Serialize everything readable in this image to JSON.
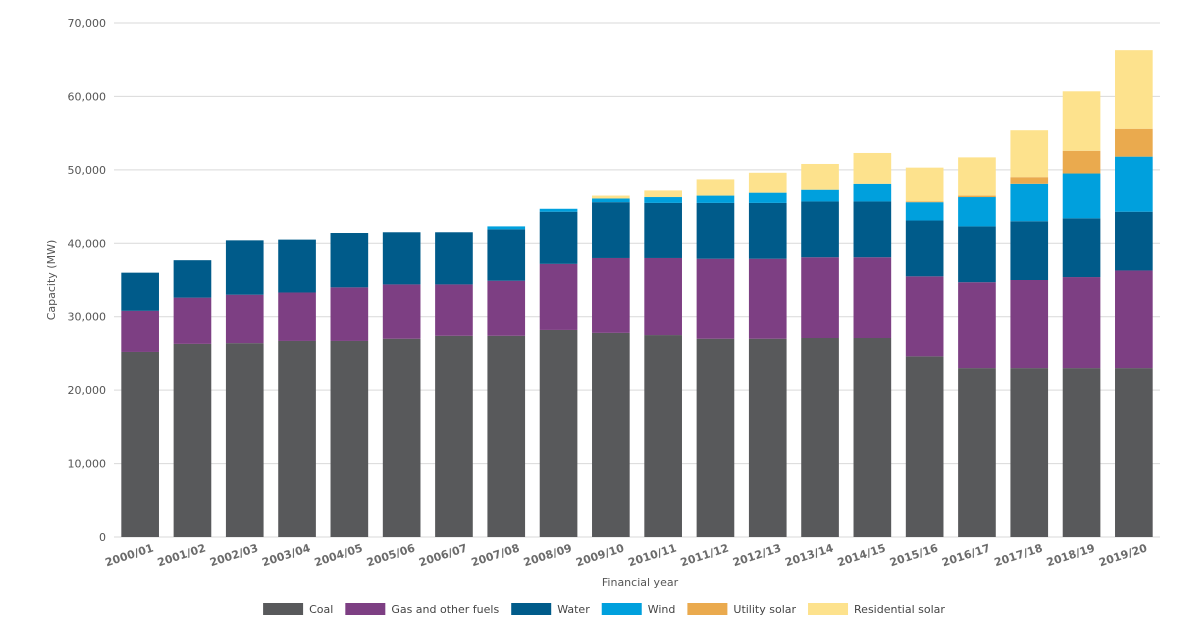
{
  "chart_data": {
    "type": "bar",
    "stacked": true,
    "xlabel": "Financial year",
    "ylabel": "Capacity (MW)",
    "ylim": [
      0,
      70000
    ],
    "yticks": [
      0,
      10000,
      20000,
      30000,
      40000,
      50000,
      60000,
      70000
    ],
    "ytick_labels": [
      "0",
      "10,000",
      "20,000",
      "30,000",
      "40,000",
      "50,000",
      "60,000",
      "70,000"
    ],
    "grid": true,
    "legend_position": "bottom",
    "categories": [
      "2000/01",
      "2001/02",
      "2002/03",
      "2003/04",
      "2004/05",
      "2005/06",
      "2006/07",
      "2007/08",
      "2008/09",
      "2009/10",
      "2010/11",
      "2011/12",
      "2012/13",
      "2013/14",
      "2014/15",
      "2015/16",
      "2016/17",
      "2017/18",
      "2018/19",
      "2019/20"
    ],
    "series": [
      {
        "name": "Coal",
        "color": "#58595b",
        "values": [
          25200,
          26300,
          26400,
          26700,
          26700,
          27000,
          27400,
          27400,
          28200,
          27800,
          27500,
          27000,
          27000,
          27100,
          27100,
          24600,
          23000,
          23000,
          23000,
          23000
        ]
      },
      {
        "name": "Gas and other fuels",
        "color": "#7d3f83",
        "values": [
          5600,
          6300,
          6600,
          6600,
          7300,
          7400,
          7000,
          7500,
          9000,
          10200,
          10500,
          10900,
          10900,
          11000,
          11000,
          10900,
          11700,
          12000,
          12400,
          13300
        ]
      },
      {
        "name": "Water",
        "color": "#005b8a",
        "values": [
          5200,
          5100,
          7400,
          7200,
          7400,
          7100,
          7100,
          7000,
          7100,
          7600,
          7500,
          7600,
          7600,
          7600,
          7600,
          7600,
          7600,
          8000,
          8000,
          8000
        ]
      },
      {
        "name": "Wind",
        "color": "#00a0dd",
        "values": [
          0,
          0,
          0,
          0,
          0,
          0,
          0,
          400,
          400,
          500,
          800,
          1000,
          1400,
          1600,
          2400,
          2500,
          4000,
          5100,
          6100,
          7500
        ]
      },
      {
        "name": "Utility solar",
        "color": "#eaaa4e",
        "values": [
          0,
          0,
          0,
          0,
          0,
          0,
          0,
          0,
          0,
          0,
          0,
          0,
          0,
          0,
          0,
          100,
          200,
          900,
          3100,
          3800
        ]
      },
      {
        "name": "Residential solar",
        "color": "#fde28d",
        "values": [
          0,
          0,
          0,
          0,
          0,
          0,
          0,
          0,
          0,
          400,
          900,
          2200,
          2700,
          3500,
          4200,
          4600,
          5200,
          6400,
          8100,
          10700
        ]
      }
    ]
  }
}
